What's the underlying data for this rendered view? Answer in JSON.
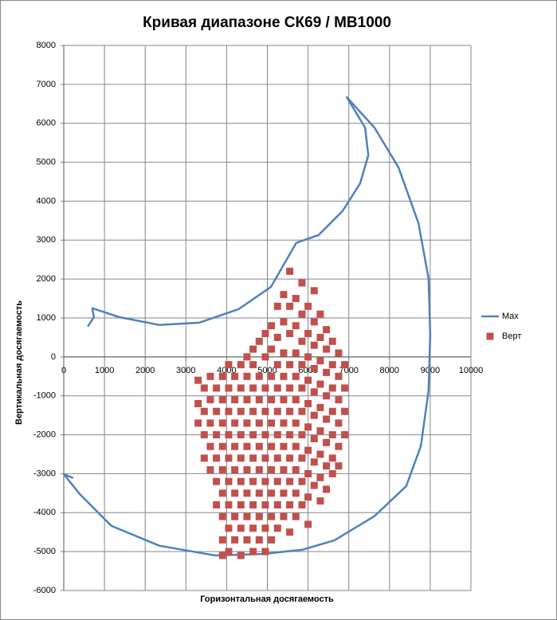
{
  "chart_data": {
    "type": "scatter",
    "title": "Кривая диапазоне СК69 / МВ1000",
    "xlabel": "Горизонтальная  досягаемость",
    "ylabel": "Вертикальная  досягаемость",
    "xlim": [
      0,
      10000
    ],
    "ylim": [
      -6000,
      8000
    ],
    "xticks": [
      0,
      1000,
      2000,
      3000,
      4000,
      5000,
      6000,
      7000,
      8000,
      9000,
      10000
    ],
    "yticks": [
      -6000,
      -5000,
      -4000,
      -3000,
      -2000,
      -1000,
      0,
      1000,
      2000,
      3000,
      4000,
      5000,
      6000,
      7000,
      8000
    ],
    "grid": true,
    "legend": "right",
    "series": [
      {
        "name": "Max",
        "type": "line",
        "color": "#4f81bd",
        "x": [
          590,
          740,
          700,
          1370,
          2350,
          3330,
          4300,
          5090,
          5710,
          6260,
          6850,
          7280,
          7480,
          7400,
          6950,
          7630,
          8220,
          8710,
          8960,
          9000,
          8960,
          8770,
          8410,
          7630,
          6650,
          5870,
          4890,
          3720,
          2350,
          1170,
          390,
          0,
          230
        ],
        "values": [
          780,
          1020,
          1250,
          1020,
          820,
          880,
          1230,
          1800,
          2930,
          3130,
          3750,
          4460,
          5180,
          5890,
          6670,
          5890,
          4870,
          3440,
          2010,
          570,
          -860,
          -2290,
          -3320,
          -4090,
          -4710,
          -4950,
          -5060,
          -5100,
          -4850,
          -4340,
          -3520,
          -3010,
          -3110
        ]
      },
      {
        "name": "Верт",
        "type": "scatter",
        "color": "#c0504d",
        "x": [
          3300,
          3300,
          3300,
          3450,
          3450,
          3450,
          3450,
          3600,
          3600,
          3600,
          3600,
          3600,
          3750,
          3750,
          3750,
          3750,
          3750,
          3750,
          3900,
          3900,
          3900,
          3900,
          3900,
          3900,
          3900,
          3900,
          3900,
          4050,
          4050,
          4050,
          4050,
          4050,
          4050,
          4050,
          4050,
          4050,
          4200,
          4200,
          4200,
          4200,
          4200,
          4200,
          4200,
          4200,
          4350,
          4350,
          4350,
          4350,
          4350,
          4350,
          4350,
          4350,
          4350,
          4500,
          4500,
          4500,
          4500,
          4500,
          4500,
          4500,
          4500,
          4500,
          4650,
          4650,
          4650,
          4650,
          4650,
          4650,
          4650,
          4650,
          4650,
          4650,
          4800,
          4800,
          4800,
          4800,
          4800,
          4800,
          4800,
          4800,
          4800,
          4950,
          4950,
          4950,
          4950,
          4950,
          4950,
          4950,
          4950,
          4950,
          4950,
          5100,
          5100,
          5100,
          5100,
          5100,
          5100,
          5100,
          5100,
          5100,
          5100,
          5250,
          5250,
          5250,
          5250,
          5250,
          5250,
          5250,
          5250,
          5250,
          5250,
          5400,
          5400,
          5400,
          5400,
          5400,
          5400,
          5400,
          5400,
          5400,
          5400,
          5550,
          5550,
          5550,
          5550,
          5550,
          5550,
          5550,
          5550,
          5550,
          5550,
          5550,
          5700,
          5700,
          5700,
          5700,
          5700,
          5700,
          5700,
          5700,
          5700,
          5700,
          5850,
          5850,
          5850,
          5850,
          5850,
          5850,
          5850,
          5850,
          5850,
          5850,
          6000,
          6000,
          6000,
          6000,
          6000,
          6000,
          6000,
          6000,
          6000,
          6000,
          6150,
          6150,
          6150,
          6150,
          6150,
          6150,
          6150,
          6150,
          6150,
          6300,
          6300,
          6300,
          6300,
          6300,
          6300,
          6300,
          6300,
          6300,
          6450,
          6450,
          6450,
          6450,
          6450,
          6450,
          6450,
          6450,
          6600,
          6600,
          6600,
          6600,
          6600,
          6600,
          6600,
          6750,
          6750,
          6750,
          6750,
          6750,
          6750,
          6900,
          6900,
          6900,
          6900
        ],
        "values": [
          -600,
          -1200,
          -1700,
          -800,
          -1400,
          -2000,
          -2600,
          -500,
          -1100,
          -1700,
          -2300,
          -2900,
          -800,
          -1400,
          -2000,
          -2600,
          -3200,
          -3800,
          -500,
          -1100,
          -1700,
          -2300,
          -2900,
          -3500,
          -4100,
          -4700,
          -5100,
          -200,
          -800,
          -1400,
          -2000,
          -2600,
          -3200,
          -3800,
          -4400,
          -5000,
          -500,
          -1100,
          -1700,
          -2300,
          -2900,
          -3500,
          -4100,
          -4700,
          -200,
          -800,
          -1400,
          -2000,
          -2600,
          -3200,
          -3800,
          -4400,
          -5100,
          0,
          -500,
          -1100,
          -1700,
          -2300,
          -2900,
          -3500,
          -4100,
          -4700,
          200,
          -200,
          -800,
          -1400,
          -2000,
          -2600,
          -3200,
          -3800,
          -4400,
          -5000,
          400,
          -500,
          -1100,
          -1700,
          -2300,
          -2900,
          -3500,
          -4100,
          -4700,
          600,
          0,
          -800,
          -1400,
          -2000,
          -2600,
          -3200,
          -3800,
          -4400,
          -5000,
          800,
          200,
          -500,
          -1100,
          -1700,
          -2300,
          -2900,
          -3500,
          -4100,
          -4700,
          1300,
          500,
          -200,
          -800,
          -1400,
          -2000,
          -2600,
          -3200,
          -3800,
          -4400,
          1600,
          900,
          100,
          -500,
          -1100,
          -1700,
          -2300,
          -2900,
          -3500,
          -4100,
          2200,
          1300,
          600,
          -200,
          -800,
          -1400,
          -2000,
          -2600,
          -3200,
          -3800,
          -4500,
          1500,
          800,
          100,
          -500,
          -1100,
          -1700,
          -2300,
          -2900,
          -3500,
          -4100,
          1900,
          1100,
          400,
          -200,
          -800,
          -1400,
          -2000,
          -2600,
          -3200,
          -3800,
          1300,
          600,
          0,
          -600,
          -1200,
          -1800,
          -2400,
          -3000,
          -3600,
          -4300,
          1700,
          900,
          300,
          -300,
          -900,
          -1500,
          -2100,
          -2700,
          -3300,
          1100,
          500,
          -100,
          -700,
          -1300,
          -1900,
          -2500,
          -3100,
          -3700,
          700,
          200,
          -400,
          -1000,
          -1600,
          -2200,
          -2800,
          -3400,
          400,
          -200,
          -800,
          -1400,
          -2000,
          -2600,
          -3000,
          100,
          -500,
          -1100,
          -1700,
          -2300,
          -2800,
          -200,
          -800,
          -1400,
          -2000
        ]
      }
    ]
  }
}
